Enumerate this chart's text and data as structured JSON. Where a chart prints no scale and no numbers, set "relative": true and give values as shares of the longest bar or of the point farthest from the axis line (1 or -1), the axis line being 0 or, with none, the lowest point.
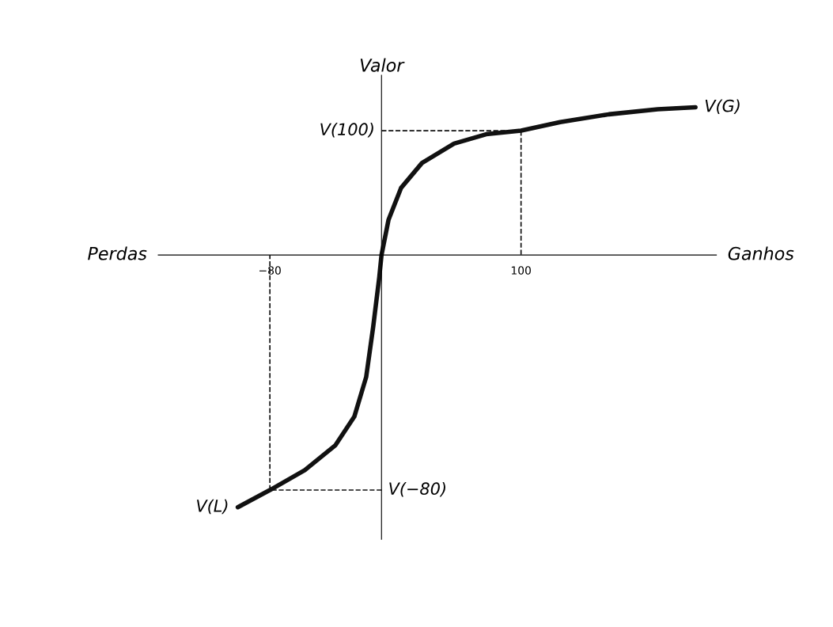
{
  "chart_data": {
    "type": "line",
    "relative": true,
    "ylabel": "Valor",
    "xlabel": "Ganhos",
    "xlim": [
      -160,
      240
    ],
    "xticks": [
      -80,
      100
    ],
    "grid": false,
    "legend": false,
    "series": [
      {
        "color": "#111111",
        "x": [
          -103,
          -80,
          -55,
          -33,
          -19.5,
          -11,
          -6,
          -1.6,
          0,
          5,
          14,
          29,
          52,
          75,
          100,
          128,
          163,
          198,
          225
        ],
        "values": [
          -1,
          -0.932,
          -0.853,
          -0.754,
          -0.641,
          -0.484,
          -0.286,
          -0.088,
          0,
          0.139,
          0.266,
          0.365,
          0.442,
          0.479,
          0.493,
          0.527,
          0.558,
          0.578,
          0.586
        ]
      },
      {
        "color": "#111111",
        "line_style": "dashed",
        "x": [
          0,
          100,
          100
        ],
        "values": [
          0.493,
          0.493,
          0
        ]
      },
      {
        "color": "#111111",
        "line_style": "dashed",
        "x": [
          0,
          -80,
          -80
        ],
        "values": [
          -0.932,
          -0.932,
          0
        ]
      }
    ],
    "annotations": [
      "Perdas",
      {
        "text": "V(G)",
        "x": 225,
        "y": 0.586
      },
      {
        "text": "V(L)",
        "x": -103,
        "y": -1
      },
      {
        "text": "V(100)",
        "x": 0,
        "y": 0.493
      },
      {
        "text": "V(−80)",
        "x": 0,
        "y": -0.932
      }
    ]
  }
}
